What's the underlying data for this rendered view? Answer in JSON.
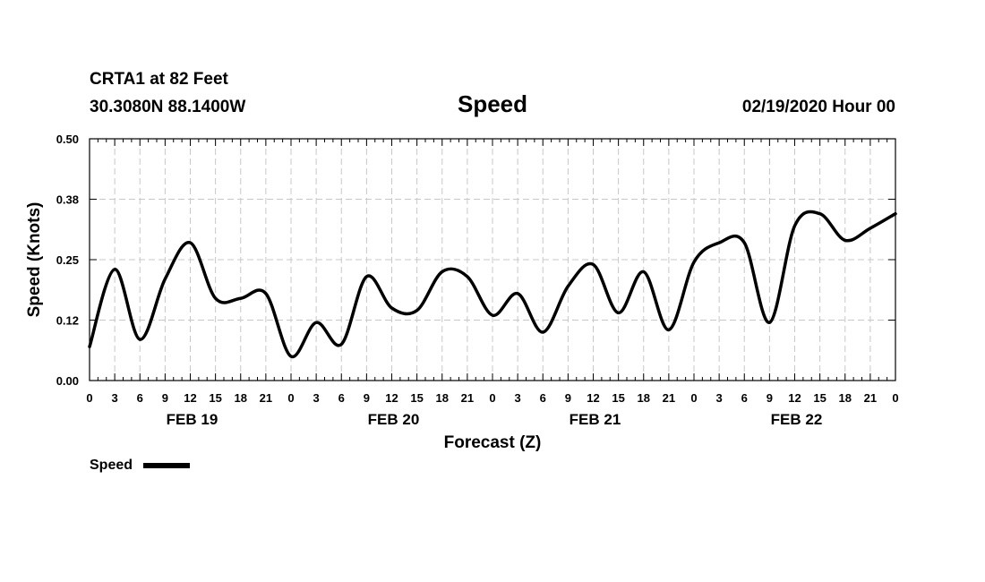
{
  "header": {
    "station": "CRTA1 at 82 Feet",
    "location": "30.3080N 88.1400W",
    "title": "Speed",
    "datetime": "02/19/2020 Hour 00"
  },
  "colors": {
    "line": "#000000",
    "grid": "#c8c8c8",
    "axis": "#000000"
  },
  "chart_data": {
    "type": "line",
    "title": "Speed",
    "xlabel": "Forecast (Z)",
    "ylabel": "Speed (Knots)",
    "xlim": [
      0,
      96
    ],
    "ylim": [
      0,
      0.5
    ],
    "yticks": [
      0.0,
      0.125,
      0.25,
      0.375,
      0.5
    ],
    "ytick_labels": [
      "0.00",
      "0.12",
      "0.25",
      "0.38",
      "0.50"
    ],
    "xticks": [
      0,
      3,
      6,
      9,
      12,
      15,
      18,
      21,
      24,
      27,
      30,
      33,
      36,
      39,
      42,
      45,
      48,
      51,
      54,
      57,
      60,
      63,
      66,
      69,
      72,
      75,
      78,
      81,
      84,
      87,
      90,
      93,
      96
    ],
    "xtick_labels": [
      "0",
      "3",
      "6",
      "9",
      "12",
      "15",
      "18",
      "21",
      "0",
      "3",
      "6",
      "9",
      "12",
      "15",
      "18",
      "21",
      "0",
      "3",
      "6",
      "9",
      "12",
      "15",
      "18",
      "21",
      "0",
      "3",
      "6",
      "9",
      "12",
      "15",
      "18",
      "21",
      "0"
    ],
    "day_labels": [
      {
        "x": 12,
        "label": "FEB 19"
      },
      {
        "x": 36,
        "label": "FEB 20"
      },
      {
        "x": 60,
        "label": "FEB 21"
      },
      {
        "x": 84,
        "label": "FEB 22"
      }
    ],
    "grid": true,
    "legend": {
      "position": "bottom-left",
      "entries": [
        "Speed"
      ]
    },
    "series": [
      {
        "name": "Speed",
        "x": [
          0,
          3,
          6,
          9,
          12,
          15,
          18,
          21,
          24,
          27,
          30,
          33,
          36,
          39,
          42,
          45,
          48,
          51,
          54,
          57,
          60,
          63,
          66,
          69,
          72,
          75,
          78,
          81,
          84,
          87,
          90,
          93,
          96
        ],
        "values": [
          0.07,
          0.23,
          0.085,
          0.21,
          0.285,
          0.17,
          0.17,
          0.18,
          0.05,
          0.12,
          0.075,
          0.215,
          0.15,
          0.145,
          0.225,
          0.215,
          0.135,
          0.18,
          0.1,
          0.195,
          0.24,
          0.14,
          0.225,
          0.105,
          0.245,
          0.285,
          0.285,
          0.12,
          0.32,
          0.345,
          0.29,
          0.315,
          0.345
        ]
      }
    ]
  }
}
